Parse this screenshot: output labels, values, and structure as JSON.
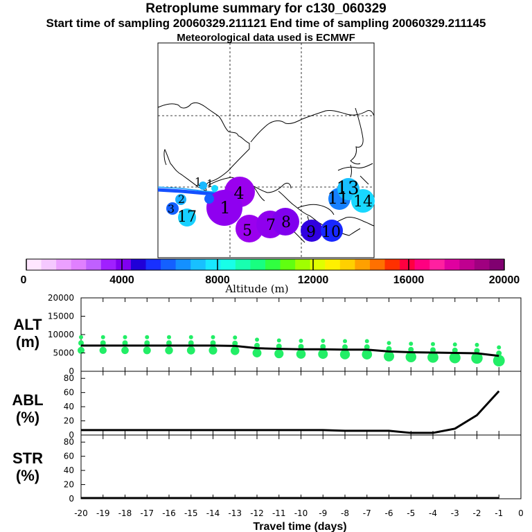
{
  "header": {
    "title": "Retroplume summary for c130_060329",
    "sampling_line": "Start time of sampling 20060329.211121     End time of sampling 20060329.211145",
    "met_line": "Meteorological data used is ECMWF"
  },
  "map": {
    "labels": [
      "1",
      "1",
      "2",
      "3",
      "4",
      "5",
      "7",
      "8",
      "9",
      "10",
      "11",
      "13",
      "14",
      "17",
      "1"
    ]
  },
  "colorbar": {
    "tick_labels": [
      "0",
      "4000",
      "8000",
      "12000",
      "16000",
      "20000"
    ],
    "title": "Altitude (m)",
    "colors": [
      "#ffe6ff",
      "#f5c8ff",
      "#eba0ff",
      "#e080ff",
      "#c060ff",
      "#a020ff",
      "#8000f0",
      "#2000d8",
      "#1830ff",
      "#1460ff",
      "#1490ff",
      "#18c0ff",
      "#18e8ff",
      "#18ffe8",
      "#18ffb0",
      "#18ff80",
      "#30ff40",
      "#60ff10",
      "#a0ff00",
      "#e0ff00",
      "#fff000",
      "#ffd000",
      "#ffa000",
      "#ff7000",
      "#ff3000",
      "#ff0040",
      "#ff0080",
      "#ff20a0",
      "#e000a0",
      "#c00090",
      "#a00080",
      "#800070"
    ]
  },
  "chart_data": [
    {
      "type": "line",
      "title": "ALT (m)",
      "ylabel": "ALT (m)",
      "ylim": [
        0,
        20000
      ],
      "yticks": [
        "0",
        "5000",
        "10000",
        "15000",
        "20000"
      ],
      "x": [
        -20,
        -19,
        -18,
        -17,
        -16,
        -15,
        -14,
        -13,
        -12,
        -11,
        -10,
        -9,
        -8,
        -7,
        -6,
        -5,
        -4,
        -3,
        -2,
        -1
      ],
      "series": [
        {
          "name": "mean altitude",
          "values": [
            7000,
            7000,
            7000,
            7000,
            7000,
            7000,
            7000,
            6900,
            6300,
            6100,
            6000,
            6000,
            5900,
            5900,
            5400,
            5200,
            5100,
            5000,
            4900,
            4200
          ]
        }
      ]
    },
    {
      "type": "line",
      "title": "ABL (%)",
      "ylabel": "ABL (%)",
      "ylim": [
        0,
        90
      ],
      "yticks": [
        "0",
        "20",
        "40",
        "60",
        "80"
      ],
      "x": [
        -20,
        -19,
        -18,
        -17,
        -16,
        -15,
        -14,
        -13,
        -12,
        -11,
        -10,
        -9,
        -8,
        -7,
        -6,
        -5,
        -4,
        -3,
        -2,
        -1
      ],
      "series": [
        {
          "name": "ABL fraction",
          "values": [
            7,
            7,
            7,
            7,
            7,
            7,
            7,
            7,
            7,
            7,
            7,
            7,
            6,
            6,
            6,
            3,
            3,
            9,
            28,
            62
          ]
        }
      ]
    },
    {
      "type": "line",
      "title": "STR (%)",
      "ylabel": "STR (%)",
      "ylim": [
        0,
        90
      ],
      "yticks": [
        "0",
        "20",
        "40",
        "60",
        "80"
      ],
      "xlabel": "Travel time (days)",
      "xticks": [
        "-20",
        "-19",
        "-18",
        "-17",
        "-16",
        "-15",
        "-14",
        "-13",
        "-12",
        "-11",
        "-10",
        "-9",
        "-8",
        "-7",
        "-6",
        "-5",
        "-4",
        "-3",
        "-2",
        "-1",
        "0"
      ],
      "x": [
        -20,
        -19,
        -18,
        -17,
        -16,
        -15,
        -14,
        -13,
        -12,
        -11,
        -10,
        -9,
        -8,
        -7,
        -6,
        -5,
        -4,
        -3,
        -2,
        -1
      ],
      "series": [
        {
          "name": "stratospheric fraction",
          "values": [
            1,
            1,
            1,
            1,
            1,
            1,
            1,
            1,
            1,
            1,
            1,
            1,
            1,
            1,
            1,
            1,
            1,
            1,
            1,
            1
          ]
        }
      ]
    }
  ]
}
